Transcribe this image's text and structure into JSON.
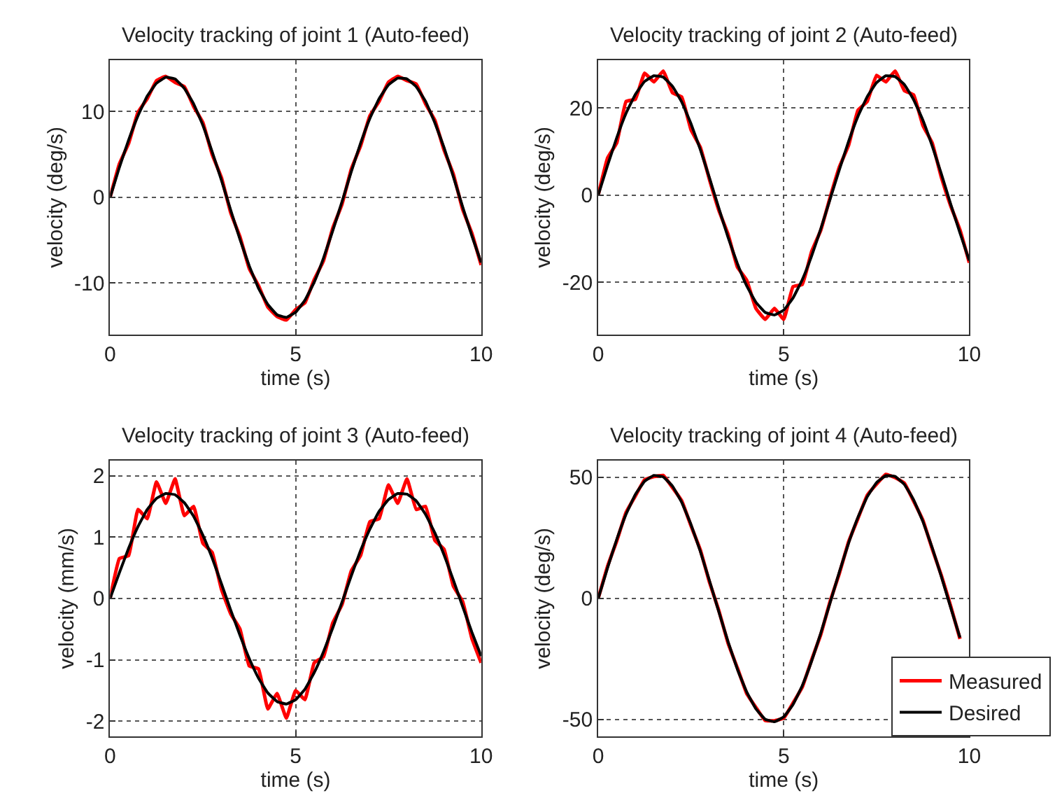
{
  "chart_data": [
    {
      "type": "line",
      "title": "Velocity tracking of joint 1 (Auto-feed)",
      "xlabel": "time (s)",
      "ylabel": "velocity (deg/s)",
      "xlim": [
        0,
        10
      ],
      "xticks": [
        0,
        5,
        10
      ],
      "ylim": [
        -16,
        16
      ],
      "yticks": [
        -10,
        0,
        10
      ],
      "grid": true,
      "legend": false,
      "x": [
        0,
        0.25,
        0.5,
        0.75,
        1,
        1.25,
        1.5,
        1.75,
        2,
        2.25,
        2.5,
        2.75,
        3,
        3.25,
        3.5,
        3.75,
        4,
        4.25,
        4.5,
        4.75,
        5,
        5.25,
        5.5,
        5.75,
        6,
        6.25,
        6.5,
        6.75,
        7,
        7.25,
        7.5,
        7.75,
        8,
        8.25,
        8.5,
        8.75,
        9,
        9.25,
        9.5,
        9.75,
        10
      ],
      "series": [
        {
          "color": "#ff0000",
          "values": [
            0,
            3.9,
            6.3,
            9.9,
            11.5,
            13.6,
            14.1,
            13.4,
            12.9,
            10.6,
            8.7,
            5.0,
            2.3,
            -1.8,
            -4.6,
            -8.3,
            -10.3,
            -12.8,
            -13.9,
            -14.3,
            -13.1,
            -12.3,
            -9.6,
            -7.4,
            -3.6,
            -0.8,
            3.3,
            6.0,
            9.5,
            11.2,
            13.4,
            14.1,
            13.6,
            13.2,
            10.9,
            9.0,
            5.5,
            2.7,
            -1.4,
            -4.2,
            -7.9
          ]
        },
        {
          "color": "#000000",
          "values": [
            0,
            3.5,
            6.7,
            9.5,
            11.8,
            13.3,
            14.0,
            13.8,
            12.7,
            10.9,
            8.4,
            5.3,
            2.0,
            -1.5,
            -4.9,
            -8.0,
            -10.6,
            -12.5,
            -13.7,
            -14.0,
            -13.4,
            -12.0,
            -9.9,
            -7.1,
            -3.9,
            -0.5,
            3.0,
            6.3,
            9.2,
            11.5,
            13.1,
            13.9,
            13.8,
            12.9,
            11.2,
            8.7,
            5.8,
            2.4,
            -1.1,
            -4.5,
            -7.6
          ]
        }
      ]
    },
    {
      "type": "line",
      "title": "Velocity tracking of joint 2 (Auto-feed)",
      "xlabel": "time (s)",
      "ylabel": "velocity (deg/s)",
      "xlim": [
        0,
        10
      ],
      "xticks": [
        0,
        5,
        10
      ],
      "ylim": [
        -32,
        31
      ],
      "yticks": [
        -20,
        0,
        20
      ],
      "grid": true,
      "legend": false,
      "x": [
        0,
        0.25,
        0.5,
        0.75,
        1,
        1.25,
        1.5,
        1.75,
        2,
        2.25,
        2.5,
        2.75,
        3,
        3.25,
        3.5,
        3.75,
        4,
        4.25,
        4.5,
        4.75,
        5,
        5.25,
        5.5,
        5.75,
        6,
        6.25,
        6.5,
        6.75,
        7,
        7.25,
        7.5,
        7.75,
        8,
        8.25,
        8.5,
        8.75,
        9,
        9.25,
        9.5,
        9.75,
        10
      ],
      "series": [
        {
          "color": "#ff0000",
          "values": [
            0,
            8.5,
            12.0,
            21.5,
            22.0,
            28.0,
            26.0,
            28.5,
            23.5,
            22.5,
            15.0,
            11.0,
            3.5,
            -3.5,
            -9.0,
            -16.5,
            -19.5,
            -26.0,
            -28.5,
            -26.0,
            -28.5,
            -21.0,
            -20.5,
            -13.0,
            -8.0,
            -0.5,
            6.5,
            11.5,
            19.5,
            21.5,
            27.5,
            26.0,
            28.5,
            24.0,
            23.0,
            16.0,
            12.0,
            4.0,
            -2.5,
            -8.0,
            -15.5
          ]
        },
        {
          "color": "#000000",
          "values": [
            0,
            6.8,
            13.2,
            18.8,
            23.1,
            26.1,
            27.4,
            27.1,
            25.0,
            21.4,
            16.4,
            10.5,
            3.9,
            -3.0,
            -9.7,
            -15.7,
            -20.8,
            -24.6,
            -26.9,
            -27.5,
            -26.4,
            -23.6,
            -19.4,
            -14.0,
            -7.7,
            -0.9,
            5.9,
            12.4,
            18.1,
            22.6,
            25.8,
            27.4,
            27.2,
            25.4,
            21.9,
            17.2,
            11.3,
            4.8,
            -2.1,
            -8.7,
            -15.0
          ]
        }
      ]
    },
    {
      "type": "line",
      "title": "Velocity tracking of joint 3 (Auto-feed)",
      "xlabel": "time (s)",
      "ylabel": "velocity (mm/s)",
      "xlim": [
        0,
        10
      ],
      "xticks": [
        0,
        5,
        10
      ],
      "ylim": [
        -2.25,
        2.25
      ],
      "yticks": [
        -2,
        -1,
        0,
        1,
        2
      ],
      "grid": true,
      "legend": false,
      "x": [
        0,
        0.25,
        0.5,
        0.75,
        1,
        1.25,
        1.5,
        1.75,
        2,
        2.25,
        2.5,
        2.75,
        3,
        3.25,
        3.5,
        3.75,
        4,
        4.25,
        4.5,
        4.75,
        5,
        5.25,
        5.5,
        5.75,
        6,
        6.25,
        6.5,
        6.75,
        7,
        7.25,
        7.5,
        7.75,
        8,
        8.25,
        8.5,
        8.75,
        9,
        9.25,
        9.5,
        9.75,
        10
      ],
      "series": [
        {
          "color": "#ff0000",
          "values": [
            0,
            0.65,
            0.7,
            1.45,
            1.3,
            1.9,
            1.55,
            1.95,
            1.35,
            1.5,
            0.9,
            0.75,
            0.15,
            -0.25,
            -0.5,
            -1.1,
            -1.15,
            -1.8,
            -1.55,
            -1.95,
            -1.5,
            -1.65,
            -1.05,
            -0.95,
            -0.4,
            -0.1,
            0.45,
            0.7,
            1.25,
            1.3,
            1.85,
            1.55,
            1.95,
            1.45,
            1.5,
            0.95,
            0.8,
            0.2,
            -0.05,
            -0.65,
            -1.05
          ]
        },
        {
          "color": "#000000",
          "values": [
            0,
            0.42,
            0.82,
            1.17,
            1.45,
            1.63,
            1.71,
            1.69,
            1.56,
            1.34,
            1.03,
            0.66,
            0.24,
            -0.19,
            -0.6,
            -0.98,
            -1.3,
            -1.54,
            -1.68,
            -1.72,
            -1.65,
            -1.48,
            -1.21,
            -0.87,
            -0.48,
            -0.06,
            0.37,
            0.78,
            1.13,
            1.42,
            1.61,
            1.71,
            1.7,
            1.59,
            1.37,
            1.07,
            0.71,
            0.3,
            -0.13,
            -0.55,
            -0.94
          ]
        }
      ]
    },
    {
      "type": "line",
      "title": "Velocity tracking of joint 4 (Auto-feed)",
      "xlabel": "time (s)",
      "ylabel": "velocity (deg/s)",
      "xlim": [
        0,
        10
      ],
      "xticks": [
        0,
        5,
        10
      ],
      "ylim": [
        -57,
        57
      ],
      "yticks": [
        -50,
        0,
        50
      ],
      "grid": true,
      "legend": "bottom right",
      "x": [
        0,
        0.25,
        0.5,
        0.75,
        1,
        1.25,
        1.5,
        1.75,
        2,
        2.25,
        2.5,
        2.75,
        3,
        3.25,
        3.5,
        3.75,
        4,
        4.25,
        4.5,
        4.75,
        5,
        5.25,
        5.5,
        5.75,
        6,
        6.25,
        6.5,
        6.75,
        7,
        7.25,
        7.5,
        7.75,
        8,
        8.25,
        8.5,
        8.75,
        9,
        9.25,
        9.5,
        9.75
      ],
      "series": [
        {
          "name": "Measured",
          "color": "#ff0000",
          "values": [
            0,
            13.2,
            23.8,
            35.5,
            42.3,
            49.0,
            50.3,
            50.8,
            45.8,
            40.3,
            30.0,
            20.1,
            6.6,
            -5.0,
            -18.5,
            -28.7,
            -39.2,
            -45.0,
            -50.4,
            -50.5,
            -49.4,
            -43.2,
            -36.6,
            -25.4,
            -14.8,
            -1.2,
            10.4,
            23.5,
            33.0,
            42.6,
            47.2,
            51.2,
            49.9,
            47.6,
            40.2,
            32.3,
            20.5,
            9.4,
            -3.2,
            -16.7
          ]
        },
        {
          "name": "Desired",
          "color": "#000000",
          "values": [
            0,
            12.6,
            24.4,
            34.8,
            42.9,
            48.4,
            50.8,
            50.2,
            46.4,
            39.7,
            30.5,
            19.5,
            7.2,
            -5.5,
            -17.9,
            -29.2,
            -38.6,
            -45.6,
            -49.9,
            -50.9,
            -48.9,
            -43.8,
            -36.0,
            -25.9,
            -14.2,
            -1.7,
            11.0,
            23.0,
            33.5,
            42.0,
            47.8,
            50.7,
            50.4,
            47.1,
            40.7,
            31.8,
            21.0,
            8.9,
            -3.8,
            -16.2
          ]
        }
      ]
    }
  ]
}
